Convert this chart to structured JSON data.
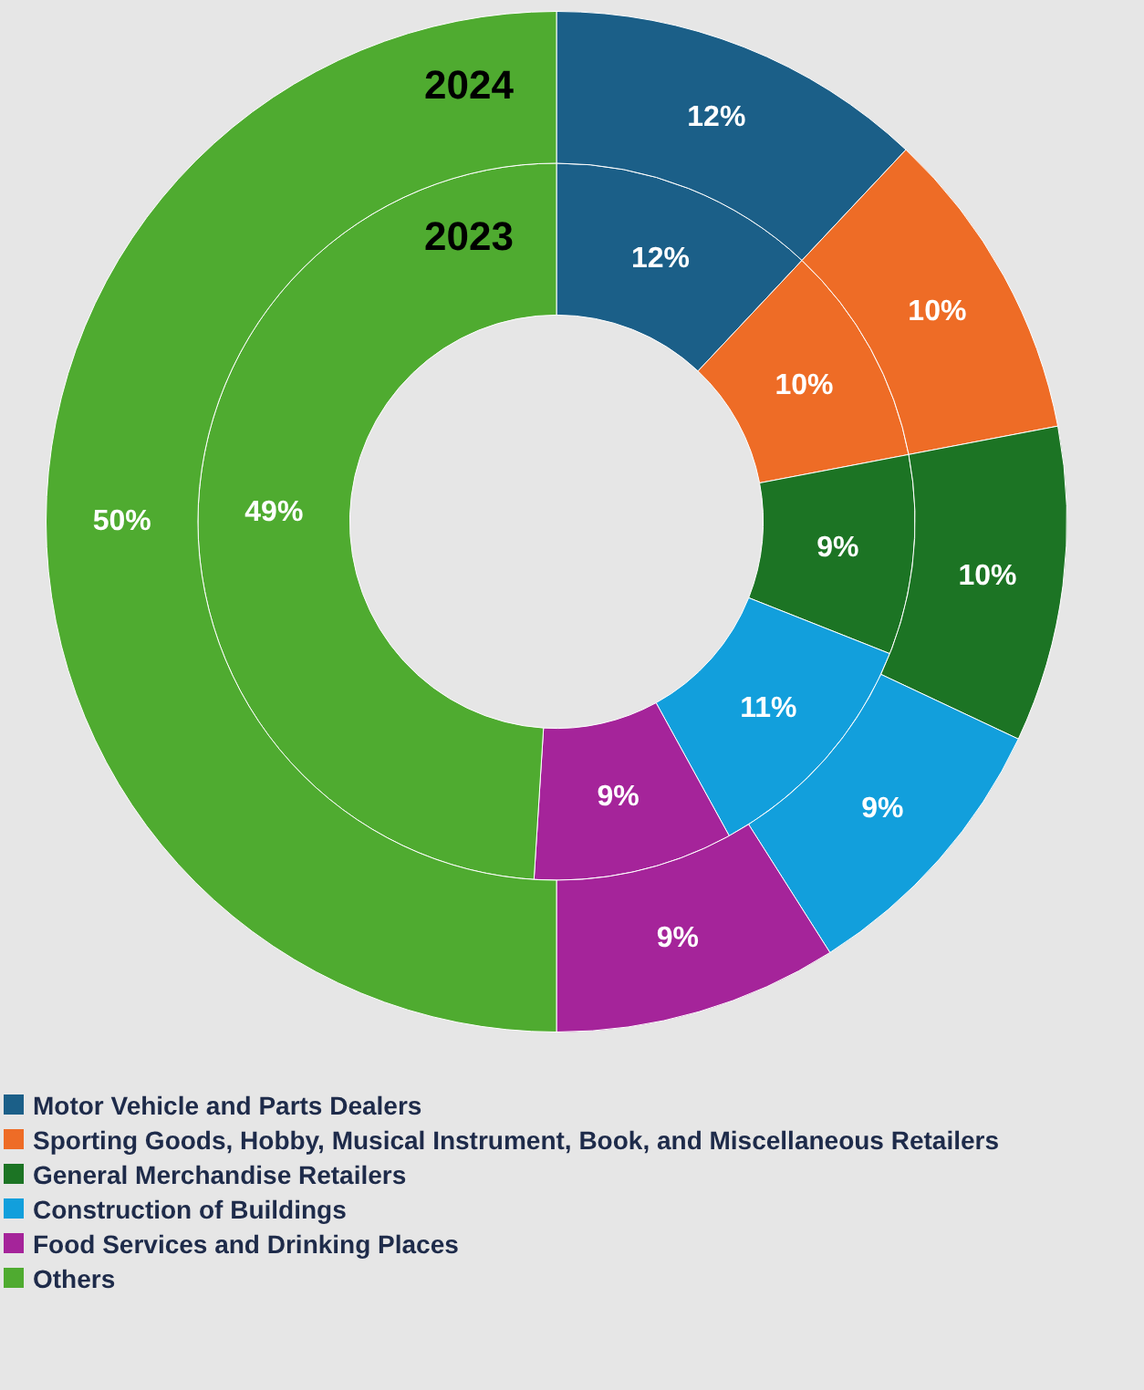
{
  "chart_data": {
    "type": "donut",
    "categories": [
      "Motor Vehicle and Parts Dealers",
      "Sporting Goods, Hobby, Musical Instrument, Book, and Miscellaneous Retailers",
      "General Merchandise Retailers",
      "Construction of Buildings",
      "Food Services and Drinking Places",
      "Others"
    ],
    "colors": [
      "#1b5f88",
      "#ee6c26",
      "#1c7424",
      "#129fdc",
      "#a5249a",
      "#4fab30"
    ],
    "series": [
      {
        "name": "2024",
        "values": [
          12,
          10,
          10,
          9,
          9,
          50
        ],
        "value_labels": [
          "12%",
          "10%",
          "10%",
          "9%",
          "9%",
          "50%"
        ]
      },
      {
        "name": "2023",
        "values": [
          12,
          10,
          9,
          11,
          9,
          49
        ],
        "value_labels": [
          "12%",
          "10%",
          "9%",
          "11%",
          "9%",
          "49%"
        ]
      }
    ],
    "legend": "bottom"
  }
}
